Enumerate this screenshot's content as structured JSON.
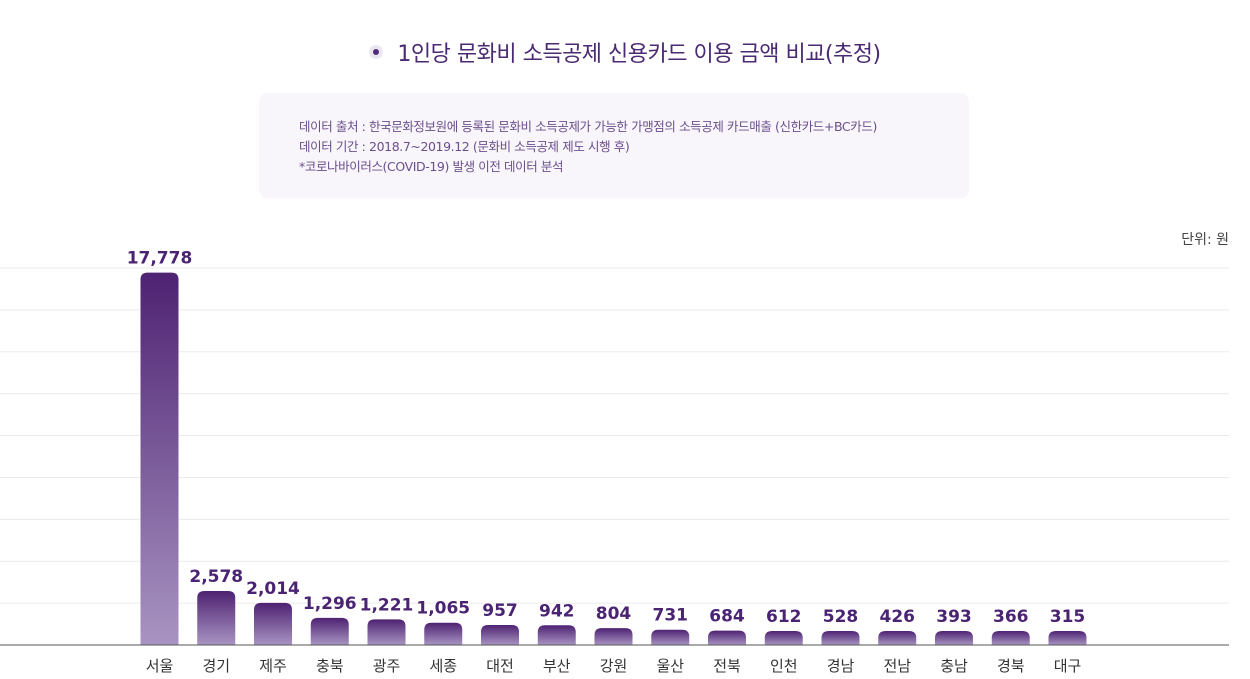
{
  "title": "1인당 문화비 소득공제 신용카드 이용 금액 비교(추정)",
  "notes": [
    "데이터 출처 : 한국문화정보원에 등록된 문화비 소득공제가 가능한 가맹점의 소득공제 카드매출 (신한카드+BC카드)",
    "데이터 기간 : 2018.7~2019.12 (문화비 소득공제 제도 시행 후)",
    "*코로나바이러스(COVID-19) 발생 이전 데이터 분석"
  ],
  "unit_label": "단위: 원",
  "colors": {
    "bar_top": "#4e2272",
    "bar_bottom": "#a894c2",
    "label": "#4a2372",
    "grid": "#ebebeb",
    "axis": "#555555"
  },
  "chart_data": {
    "type": "bar",
    "categories": [
      "서울",
      "경기",
      "제주",
      "충북",
      "광주",
      "세종",
      "대전",
      "부산",
      "강원",
      "울산",
      "전북",
      "인천",
      "경남",
      "전남",
      "충남",
      "경북",
      "대구"
    ],
    "values": [
      17778,
      2578,
      2014,
      1296,
      1221,
      1065,
      957,
      942,
      804,
      731,
      684,
      612,
      528,
      426,
      393,
      366,
      315
    ],
    "value_labels": [
      "17,778",
      "2,578",
      "2,014",
      "1,296",
      "1,221",
      "1,065",
      "957",
      "942",
      "804",
      "731",
      "684",
      "612",
      "528",
      "426",
      "393",
      "366",
      "315"
    ],
    "title": "1인당 문화비 소득공제 신용카드 이용 금액 비교(추정)",
    "xlabel": "",
    "ylabel": "",
    "ylim": [
      0,
      18000
    ],
    "grid": true,
    "legend": "none"
  }
}
